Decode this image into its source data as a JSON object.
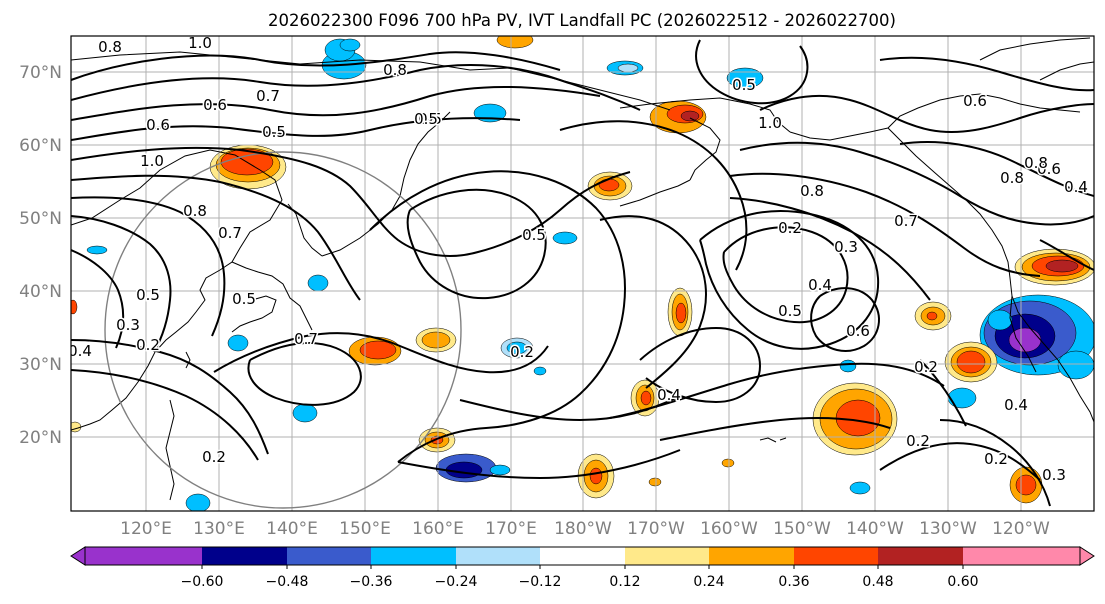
{
  "figure": {
    "title": "2026022300 F096 700 hPa PV, IVT Landfall PC (2026022512 - 2026022700)"
  },
  "map": {
    "lat_labels": [
      "70°N",
      "60°N",
      "50°N",
      "40°N",
      "30°N",
      "20°N"
    ],
    "lon_labels": [
      "120°E",
      "130°E",
      "140°E",
      "150°E",
      "160°E",
      "170°E",
      "180°W",
      "170°W",
      "160°W",
      "150°W",
      "140°W",
      "130°W",
      "120°W"
    ],
    "extent": {
      "lon": [
        "110°E",
        "250°E"
      ],
      "lat": [
        10,
        75
      ]
    },
    "contour_labels": [
      "0.8",
      "1.0",
      "0.8",
      "0.6",
      "0.7",
      "0.6",
      "0.5",
      "0.5",
      "1.0",
      "0.8",
      "0.7",
      "0.5",
      "0.7",
      "0.5",
      "0.2",
      "0.4",
      "0.3",
      "0.5",
      "0.2",
      "0.2",
      "0.4",
      "0.5",
      "0.4",
      "0.6",
      "0.2",
      "0.2",
      "0.2",
      "0.2",
      "0.8",
      "0.7",
      "0.8",
      "0.6",
      "1.0",
      "0.5",
      "0.6",
      "0.4",
      "0.8",
      "0.3",
      "0.3",
      "0.4",
      "0.5"
    ],
    "contour_color": "#000000",
    "coastline_color": "#000000",
    "grid_color": "#b0b0b0"
  },
  "colorbar": {
    "ticks": [
      "−0.60",
      "−0.48",
      "−0.36",
      "−0.24",
      "−0.12",
      "0.12",
      "0.24",
      "0.36",
      "0.48",
      "0.60"
    ],
    "bins": [
      "#9932cc",
      "#00008b",
      "#3a5bcc",
      "#00bfff",
      "#b0e0fa",
      "#ffffff",
      "#ffe98a",
      "#ffa500",
      "#ff4500",
      "#b22222",
      "#ff88aa"
    ],
    "extend": "both"
  }
}
